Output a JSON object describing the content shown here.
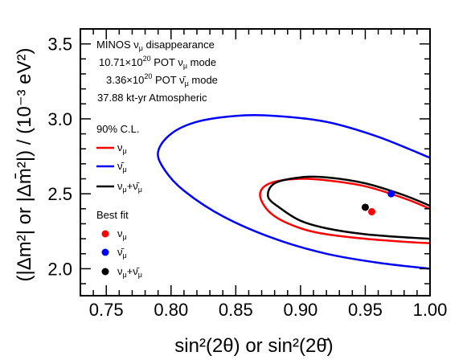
{
  "chart_data": {
    "type": "line",
    "xlabel": "sin²(2θ) or sin²(2θ̄)",
    "ylabel": "(|Δm²| or |Δm̄²|) / (10⁻³ eV²)",
    "xlim": [
      0.73,
      1.0
    ],
    "ylim": [
      1.82,
      3.6
    ],
    "xticks": [
      0.75,
      0.8,
      0.85,
      0.9,
      0.95,
      1.0
    ],
    "yticks": [
      2.0,
      2.5,
      3.0,
      3.5
    ],
    "xtick_labels": [
      "0.75",
      "0.80",
      "0.85",
      "0.90",
      "0.95",
      "1.00"
    ],
    "ytick_labels": [
      "2.0",
      "2.5",
      "3.0",
      "3.5"
    ],
    "info_lines": [
      "MINOS νμ disappearance",
      "10.71×10²⁰ POT νμ mode",
      "3.36×10²⁰ POT ν̄μ mode",
      "37.88 kt-yr Atmospheric"
    ],
    "legend_contour_title": "90% C.L.",
    "legend_bestfit_title": "Best fit",
    "colors": {
      "nu": "#ff0000",
      "nubar": "#0000ff",
      "combined": "#000000"
    },
    "series": [
      {
        "name": "νμ",
        "kind": "contour",
        "color": "#ff0000",
        "x": [
          1.0,
          0.98,
          0.95,
          0.92,
          0.9,
          0.88,
          0.87,
          0.87,
          0.88,
          0.9,
          0.92,
          0.95,
          0.98,
          1.0
        ],
        "y": [
          2.17,
          2.18,
          2.2,
          2.23,
          2.27,
          2.35,
          2.45,
          2.53,
          2.58,
          2.6,
          2.59,
          2.55,
          2.47,
          2.4
        ]
      },
      {
        "name": "ν̄μ",
        "kind": "contour",
        "color": "#0000ff",
        "x": [
          1.0,
          0.96,
          0.92,
          0.88,
          0.84,
          0.81,
          0.795,
          0.79,
          0.8,
          0.82,
          0.85,
          0.88,
          0.92,
          0.96,
          1.0
        ],
        "y": [
          2.0,
          2.04,
          2.1,
          2.2,
          2.35,
          2.52,
          2.66,
          2.78,
          2.9,
          2.98,
          3.02,
          3.02,
          2.98,
          2.88,
          2.74
        ]
      },
      {
        "name": "νμ+ν̄μ",
        "kind": "contour",
        "color": "#000000",
        "x": [
          1.0,
          0.98,
          0.95,
          0.92,
          0.9,
          0.885,
          0.875,
          0.88,
          0.9,
          0.92,
          0.95,
          0.98,
          1.0
        ],
        "y": [
          2.2,
          2.21,
          2.23,
          2.27,
          2.32,
          2.4,
          2.48,
          2.57,
          2.61,
          2.61,
          2.57,
          2.49,
          2.42
        ]
      }
    ],
    "best_fit": [
      {
        "name": "νμ",
        "x": 0.955,
        "y": 2.38,
        "color": "#ff0000"
      },
      {
        "name": "ν̄μ",
        "x": 0.97,
        "y": 2.5,
        "color": "#0000ff"
      },
      {
        "name": "νμ+ν̄μ",
        "x": 0.95,
        "y": 2.41,
        "color": "#000000"
      }
    ]
  }
}
